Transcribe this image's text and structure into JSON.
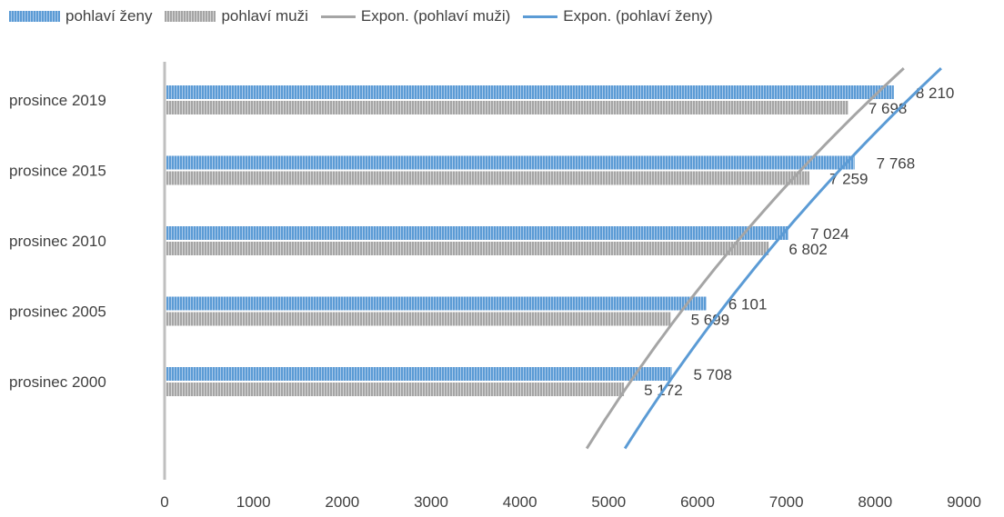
{
  "chart_data": {
    "type": "bar",
    "orientation": "horizontal",
    "categories": [
      "prosinec 2000",
      "prosinec 2005",
      "prosinec 2010",
      "prosince 2015",
      "prosince 2019"
    ],
    "series": [
      {
        "name": "pohlaví ženy",
        "values": [
          5708,
          6101,
          7024,
          7768,
          8210
        ],
        "labels": [
          "5 708",
          "6 101",
          "7 024",
          "7 768",
          "8 210"
        ],
        "color": "#5b9bd5"
      },
      {
        "name": "pohlaví muži",
        "values": [
          5172,
          5699,
          6802,
          7259,
          7698
        ],
        "labels": [
          "5 172",
          "5 699",
          "6 802",
          "7 259",
          "7 698"
        ],
        "color": "#a5a5a5"
      }
    ],
    "trendlines": [
      {
        "name": "Expon. (pohlaví muži)",
        "type": "exponential",
        "series": "pohlaví muži",
        "color": "#a5a5a5"
      },
      {
        "name": "Expon. (pohlaví ženy)",
        "type": "exponential",
        "series": "pohlaví ženy",
        "color": "#5b9bd5"
      }
    ],
    "xlim": [
      0,
      9000
    ],
    "xticks": [
      "0",
      "1000",
      "2000",
      "3000",
      "4000",
      "5000",
      "6000",
      "7000",
      "8000",
      "9000"
    ],
    "grid": false,
    "legend_position": "top"
  }
}
